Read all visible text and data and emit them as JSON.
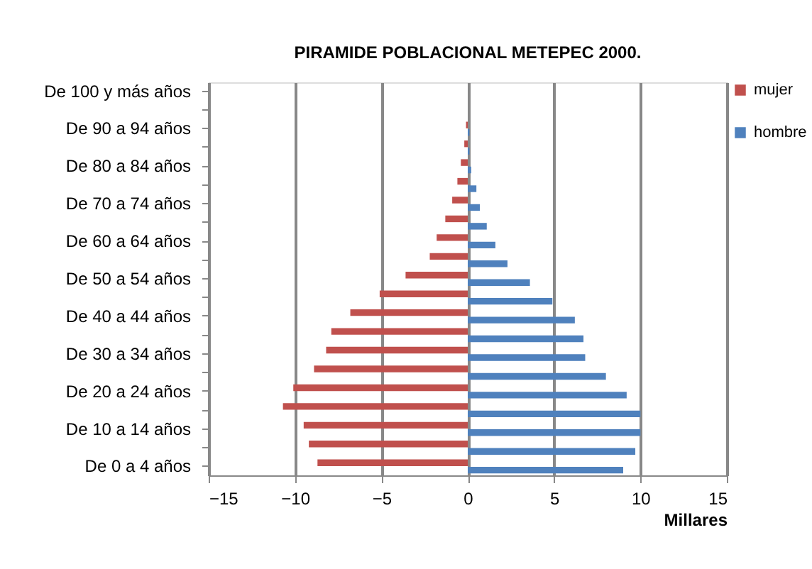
{
  "chart_data": {
    "type": "bar",
    "orientation": "horizontal",
    "title": "PIRAMIDE POBLACIONAL METEPEC 2000.",
    "xlabel": "Millares",
    "categories": [
      "De 100 y más años",
      null,
      "De 90 a 94 años",
      null,
      "De 80 a 84 años",
      null,
      "De 70 a 74 años",
      null,
      "De 60 a 64 años",
      null,
      "De 50 a 54 años",
      null,
      "De 40 a 44 años",
      null,
      "De 30 a 34 años",
      null,
      "De 20 a 24 años",
      null,
      "De 10 a 14 años",
      null,
      "De 0 a 4 años"
    ],
    "series": [
      {
        "name": "mujer",
        "color": "#c0504d",
        "values": [
          0,
          0,
          -0.1,
          -0.2,
          -0.4,
          -0.6,
          -0.9,
          -1.3,
          -1.8,
          -2.2,
          -3.6,
          -5.1,
          -6.8,
          -7.9,
          -8.2,
          -8.9,
          -10.1,
          -10.7,
          -9.5,
          -9.2,
          -8.7
        ]
      },
      {
        "name": "hombre",
        "color": "#4f81bd",
        "values": [
          0,
          0,
          0.1,
          0.1,
          0.2,
          0.5,
          0.7,
          1.1,
          1.6,
          2.3,
          3.6,
          4.9,
          6.2,
          6.7,
          6.8,
          8.0,
          9.2,
          10.0,
          10.0,
          9.7,
          9.0
        ]
      }
    ],
    "xlim": [
      -15,
      15
    ],
    "xticks": [
      -15,
      -10,
      -5,
      0,
      5,
      10,
      15
    ],
    "grid": "x",
    "legend": "right"
  }
}
